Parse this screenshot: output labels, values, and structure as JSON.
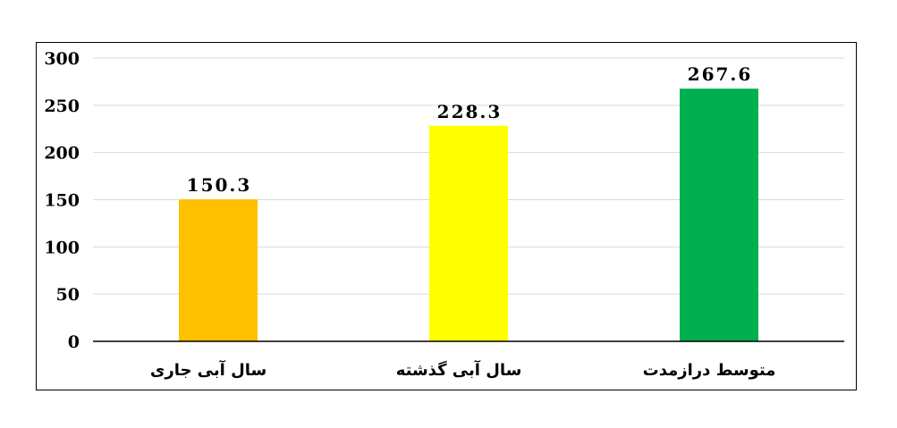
{
  "chart_data": {
    "type": "bar",
    "categories": [
      "سال آبی جاری",
      "سال آبی گذشته",
      "متوسط درازمدت"
    ],
    "values": [
      150.3,
      228.3,
      267.6
    ],
    "value_labels": [
      "150.3",
      "228.3",
      "267.6"
    ],
    "colors": [
      "#ffc000",
      "#ffff00",
      "#00b050"
    ],
    "ylim": [
      0,
      300
    ],
    "yticks": [
      0,
      50,
      100,
      150,
      200,
      250,
      300
    ],
    "grid": true,
    "legend": "none"
  }
}
